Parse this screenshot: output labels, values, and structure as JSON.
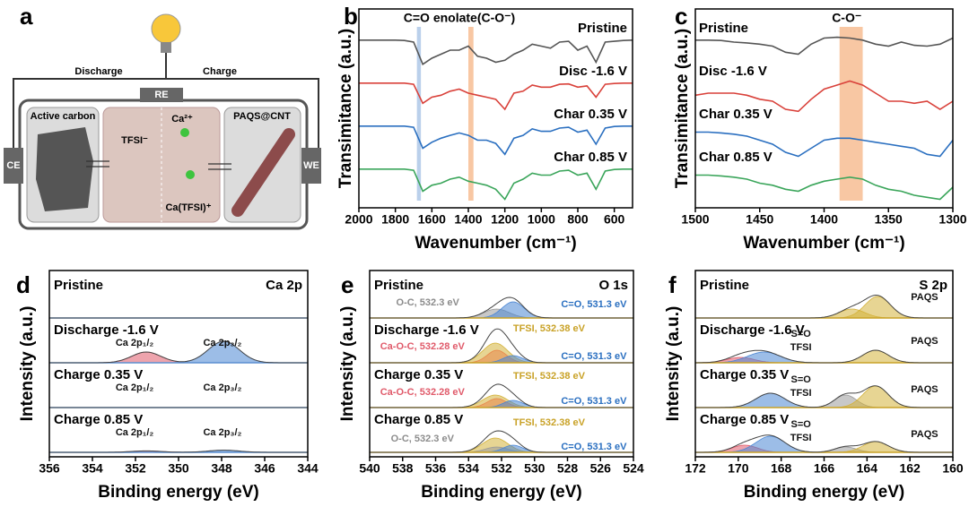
{
  "schematic": {
    "letter": "a",
    "discharge": "Discharge",
    "charge": "Charge",
    "re": "RE",
    "ce": "CE",
    "we": "WE",
    "active_carbon": "Active carbon",
    "tfsi": "TFSI⁻",
    "ca": "Ca²⁺",
    "ca_tfsi": "Ca(TFSI)⁺",
    "paqs": "PAQS@CNT"
  },
  "chart_data": [
    {
      "type": "line",
      "letter": "b",
      "annotation": "C=O enolate(C-O⁻)",
      "xlabel": "Wavenumber (cm⁻¹)",
      "ylabel": "Transimitance (a.u.)",
      "xlim": [
        2000,
        500
      ],
      "xticks": [
        2000,
        1800,
        1600,
        1400,
        1200,
        1000,
        800,
        600
      ],
      "ylim": [
        0,
        1
      ],
      "highlights": [
        {
          "range": [
            1682,
            1660
          ],
          "color": "#a9c4e6"
        },
        {
          "range": [
            1400,
            1372
          ],
          "color": "#f6b98c"
        }
      ],
      "x": [
        2000,
        1950,
        1900,
        1850,
        1800,
        1750,
        1700,
        1650,
        1600,
        1550,
        1500,
        1450,
        1400,
        1350,
        1300,
        1250,
        1200,
        1150,
        1100,
        1050,
        1000,
        950,
        900,
        850,
        800,
        750,
        700,
        650,
        600,
        550,
        500
      ],
      "series": [
        {
          "name": "Pristine",
          "color": "#555555",
          "values": [
            0.85,
            0.85,
            0.85,
            0.85,
            0.85,
            0.84,
            0.8,
            0.25,
            0.4,
            0.5,
            0.6,
            0.6,
            0.7,
            0.45,
            0.4,
            0.3,
            0.35,
            0.5,
            0.6,
            0.75,
            0.7,
            0.65,
            0.8,
            0.82,
            0.6,
            0.7,
            0.3,
            0.8,
            0.82,
            0.84,
            0.85
          ]
        },
        {
          "name": "Disc -1.6 V",
          "color": "#d9413a",
          "values": [
            0.85,
            0.85,
            0.85,
            0.85,
            0.85,
            0.85,
            0.82,
            0.35,
            0.5,
            0.55,
            0.65,
            0.7,
            0.6,
            0.55,
            0.5,
            0.45,
            0.2,
            0.6,
            0.65,
            0.8,
            0.75,
            0.75,
            0.82,
            0.83,
            0.75,
            0.78,
            0.5,
            0.82,
            0.84,
            0.85,
            0.85
          ]
        },
        {
          "name": "Char 0.35 V",
          "color": "#2a6fc0",
          "values": [
            0.85,
            0.85,
            0.85,
            0.85,
            0.85,
            0.85,
            0.82,
            0.3,
            0.45,
            0.55,
            0.62,
            0.68,
            0.62,
            0.5,
            0.5,
            0.42,
            0.15,
            0.55,
            0.62,
            0.78,
            0.72,
            0.72,
            0.8,
            0.82,
            0.7,
            0.75,
            0.4,
            0.8,
            0.84,
            0.85,
            0.85
          ]
        },
        {
          "name": "Char 0.85 V",
          "color": "#3aa55a",
          "values": [
            0.85,
            0.85,
            0.85,
            0.85,
            0.85,
            0.85,
            0.82,
            0.3,
            0.45,
            0.5,
            0.6,
            0.65,
            0.55,
            0.5,
            0.45,
            0.35,
            0.1,
            0.5,
            0.6,
            0.75,
            0.7,
            0.7,
            0.8,
            0.82,
            0.7,
            0.75,
            0.35,
            0.8,
            0.84,
            0.85,
            0.85
          ]
        }
      ]
    },
    {
      "type": "line",
      "letter": "c",
      "annotation": "C-O⁻",
      "xlabel": "Wavenumber (cm⁻¹)",
      "ylabel": "Transimitance (a.u.)",
      "xlim": [
        1500,
        1300
      ],
      "xticks": [
        1500,
        1450,
        1400,
        1350,
        1300
      ],
      "ylim": [
        0,
        1
      ],
      "highlights": [
        {
          "range": [
            1388,
            1370
          ],
          "color": "#f6b98c"
        }
      ],
      "x": [
        1500,
        1490,
        1480,
        1470,
        1460,
        1450,
        1440,
        1430,
        1420,
        1410,
        1400,
        1390,
        1380,
        1370,
        1360,
        1350,
        1340,
        1330,
        1320,
        1310,
        1300
      ],
      "series": [
        {
          "name": "Pristine",
          "color": "#555555",
          "values": [
            0.85,
            0.85,
            0.84,
            0.8,
            0.78,
            0.75,
            0.7,
            0.55,
            0.5,
            0.75,
            0.9,
            0.92,
            0.9,
            0.85,
            0.75,
            0.7,
            0.8,
            0.72,
            0.7,
            0.75,
            0.9
          ]
        },
        {
          "name": "Disc -1.6 V",
          "color": "#d9413a",
          "values": [
            0.55,
            0.6,
            0.6,
            0.6,
            0.55,
            0.45,
            0.4,
            0.2,
            0.15,
            0.45,
            0.7,
            0.8,
            0.9,
            0.8,
            0.6,
            0.4,
            0.4,
            0.35,
            0.4,
            0.2,
            0.4
          ]
        },
        {
          "name": "Char 0.35 V",
          "color": "#2a6fc0",
          "values": [
            0.7,
            0.7,
            0.68,
            0.65,
            0.6,
            0.5,
            0.4,
            0.2,
            0.1,
            0.3,
            0.5,
            0.55,
            0.55,
            0.5,
            0.45,
            0.4,
            0.35,
            0.3,
            0.15,
            0.1,
            0.5
          ]
        },
        {
          "name": "Char 0.85 V",
          "color": "#3aa55a",
          "values": [
            0.7,
            0.7,
            0.68,
            0.65,
            0.6,
            0.5,
            0.45,
            0.35,
            0.3,
            0.45,
            0.55,
            0.6,
            0.65,
            0.6,
            0.45,
            0.35,
            0.3,
            0.2,
            0.15,
            0.1,
            0.4
          ]
        }
      ]
    },
    {
      "type": "area",
      "letter": "d",
      "title": "Ca 2p",
      "xlabel": "Binding energy (eV)",
      "ylabel": "Intensity (a.u.)",
      "xlim": [
        356,
        344
      ],
      "xticks": [
        356,
        354,
        352,
        350,
        348,
        346,
        344
      ],
      "baseline_color": "#5b8fd0",
      "series": [
        {
          "name": "Pristine",
          "components": [],
          "annotations": []
        },
        {
          "name": "Discharge -1.6 V",
          "components": [
            {
              "center": 351.5,
              "height": 0.3,
              "fwhm": 1.6,
              "color": "#e05a6a"
            },
            {
              "center": 347.9,
              "height": 0.6,
              "fwhm": 1.7,
              "color": "#4a86d4"
            }
          ],
          "annotations": [
            {
              "text": "Ca 2p₁/₂",
              "color": "#111111"
            },
            {
              "text": "Ca 2p₃/₂",
              "color": "#111111"
            }
          ]
        },
        {
          "name": "Charge 0.35 V",
          "components": [],
          "annotations": [
            {
              "text": "Ca 2p₁/₂",
              "color": "#111111"
            },
            {
              "text": "Ca 2p₃/₂",
              "color": "#111111"
            }
          ]
        },
        {
          "name": "Charge 0.85 V",
          "components": [
            {
              "center": 351.5,
              "height": 0.04,
              "fwhm": 1.6,
              "color": "#e05a6a"
            },
            {
              "center": 347.9,
              "height": 0.06,
              "fwhm": 1.7,
              "color": "#4a86d4"
            }
          ],
          "annotations": [
            {
              "text": "Ca 2p₁/₂",
              "color": "#111111"
            },
            {
              "text": "Ca 2p₃/₂",
              "color": "#111111"
            }
          ]
        }
      ]
    },
    {
      "type": "area",
      "letter": "e",
      "title": "O 1s",
      "xlabel": "Binding energy (eV)",
      "ylabel": "Intensity (a.u.)",
      "xlim": [
        540,
        524
      ],
      "xticks": [
        540,
        538,
        536,
        534,
        532,
        530,
        528,
        526,
        524
      ],
      "baseline_color": "#c9a227",
      "series": [
        {
          "name": "Pristine",
          "components": [
            {
              "center": 532.3,
              "height": 0.25,
              "fwhm": 1.8,
              "color": "#9a9a9a"
            },
            {
              "center": 531.3,
              "height": 0.45,
              "fwhm": 1.6,
              "color": "#4a86d4"
            }
          ],
          "annotations": [
            {
              "text": "O-C, 532.3 eV",
              "color": "#8c8c8c"
            },
            {
              "text": "C=O, 531.3 eV",
              "color": "#2a6fc0"
            }
          ]
        },
        {
          "name": "Discharge -1.6 V",
          "components": [
            {
              "center": 532.38,
              "height": 0.55,
              "fwhm": 1.8,
              "color": "#d4b23a"
            },
            {
              "center": 532.28,
              "height": 0.35,
              "fwhm": 1.4,
              "color": "#e8874a"
            },
            {
              "center": 531.3,
              "height": 0.2,
              "fwhm": 1.4,
              "color": "#4a86d4"
            }
          ],
          "annotations": [
            {
              "text": "TFSI, 532.38 eV",
              "color": "#c9a227"
            },
            {
              "text": "Ca-O-C, 532.28 eV",
              "color": "#e05a6a"
            },
            {
              "text": "C=O, 531.3 eV",
              "color": "#2a6fc0"
            }
          ]
        },
        {
          "name": "Charge 0.35 V",
          "components": [
            {
              "center": 532.38,
              "height": 0.35,
              "fwhm": 1.8,
              "color": "#d4b23a"
            },
            {
              "center": 532.28,
              "height": 0.25,
              "fwhm": 1.4,
              "color": "#e8874a"
            },
            {
              "center": 531.3,
              "height": 0.2,
              "fwhm": 1.4,
              "color": "#4a86d4"
            }
          ],
          "annotations": [
            {
              "text": "TFSI, 532.38 eV",
              "color": "#c9a227"
            },
            {
              "text": "Ca-O-C, 532.28 eV",
              "color": "#e05a6a"
            },
            {
              "text": "C=O, 531.3 eV",
              "color": "#2a6fc0"
            }
          ]
        },
        {
          "name": "Charge 0.85 V",
          "components": [
            {
              "center": 532.38,
              "height": 0.4,
              "fwhm": 1.8,
              "color": "#d4b23a"
            },
            {
              "center": 532.3,
              "height": 0.15,
              "fwhm": 1.6,
              "color": "#9a9a9a"
            },
            {
              "center": 531.3,
              "height": 0.2,
              "fwhm": 1.4,
              "color": "#4a86d4"
            }
          ],
          "annotations": [
            {
              "text": "TFSI, 532.38 eV",
              "color": "#c9a227"
            },
            {
              "text": "O-C, 532.3 eV",
              "color": "#8c8c8c"
            },
            {
              "text": "C=O, 531.3 eV",
              "color": "#2a6fc0"
            }
          ]
        }
      ]
    },
    {
      "type": "area",
      "letter": "f",
      "title": "S 2p",
      "xlabel": "Binding energy (eV)",
      "ylabel": "Intensity (a.u.)",
      "xlim": [
        172,
        160
      ],
      "xticks": [
        172,
        170,
        168,
        166,
        164,
        162,
        160
      ],
      "baseline_color": "#c9a227",
      "series": [
        {
          "name": "Pristine",
          "components": [
            {
              "center": 163.5,
              "height": 0.6,
              "fwhm": 1.4,
              "color": "#d4b23a"
            },
            {
              "center": 164.7,
              "height": 0.25,
              "fwhm": 1.4,
              "color": "#d4b23a"
            }
          ],
          "annotations": [
            {
              "text": "PAQS",
              "color": "#111111"
            }
          ]
        },
        {
          "name": "Discharge -1.6 V",
          "components": [
            {
              "center": 169.9,
              "height": 0.15,
              "fwhm": 1.5,
              "color": "#e05a6a"
            },
            {
              "center": 168.8,
              "height": 0.3,
              "fwhm": 1.8,
              "color": "#4a86d4"
            },
            {
              "center": 163.6,
              "height": 0.35,
              "fwhm": 1.4,
              "color": "#d4b23a"
            }
          ],
          "annotations": [
            {
              "text": "S=O",
              "color": "#111111"
            },
            {
              "text": "TFSI",
              "color": "#111111"
            },
            {
              "text": "PAQS",
              "color": "#111111"
            }
          ]
        },
        {
          "name": "Charge 0.35 V",
          "components": [
            {
              "center": 168.5,
              "height": 0.4,
              "fwhm": 1.6,
              "color": "#4a86d4"
            },
            {
              "center": 165,
              "height": 0.35,
              "fwhm": 1.2,
              "color": "#9a9a9a"
            },
            {
              "center": 163.6,
              "height": 0.6,
              "fwhm": 1.4,
              "color": "#d4b23a"
            }
          ],
          "annotations": [
            {
              "text": "S=O",
              "color": "#111111"
            },
            {
              "text": "TFSI",
              "color": "#111111"
            },
            {
              "text": "PAQS",
              "color": "#111111"
            }
          ]
        },
        {
          "name": "Charge 0.85 V",
          "components": [
            {
              "center": 169.7,
              "height": 0.2,
              "fwhm": 1.4,
              "color": "#e05a6a"
            },
            {
              "center": 168.5,
              "height": 0.45,
              "fwhm": 1.6,
              "color": "#4a86d4"
            },
            {
              "center": 165,
              "height": 0.15,
              "fwhm": 1.2,
              "color": "#9a9a9a"
            },
            {
              "center": 163.6,
              "height": 0.3,
              "fwhm": 1.4,
              "color": "#d4b23a"
            }
          ],
          "annotations": [
            {
              "text": "S=O",
              "color": "#111111"
            },
            {
              "text": "TFSI",
              "color": "#111111"
            },
            {
              "text": "PAQS",
              "color": "#111111"
            }
          ]
        }
      ]
    }
  ]
}
